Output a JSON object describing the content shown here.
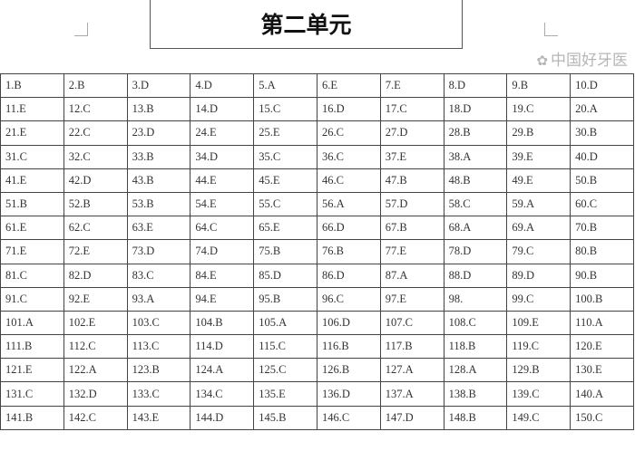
{
  "title": "第二单元",
  "watermark": "中国好牙医",
  "answers": [
    [
      "1.B",
      "2.B",
      "3.D",
      "4.D",
      "5.A",
      "6.E",
      "7.E",
      "8.D",
      "9.B",
      "10.D"
    ],
    [
      "11.E",
      "12.C",
      "13.B",
      "14.D",
      "15.C",
      "16.D",
      "17.C",
      "18.D",
      "19.C",
      "20.A"
    ],
    [
      "21.E",
      "22.C",
      "23.D",
      "24.E",
      "25.E",
      "26.C",
      "27.D",
      "28.B",
      "29.B",
      "30.B"
    ],
    [
      "31.C",
      "32.C",
      "33.B",
      "34.D",
      "35.C",
      "36.C",
      "37.E",
      "38.A",
      "39.E",
      "40.D"
    ],
    [
      "41.E",
      "42.D",
      "43.B",
      "44.E",
      "45.E",
      "46.C",
      "47.B",
      "48.B",
      "49.E",
      "50.B"
    ],
    [
      "51.B",
      "52.B",
      "53.B",
      "54.E",
      "55.C",
      "56.A",
      "57.D",
      "58.C",
      "59.A",
      "60.C"
    ],
    [
      "61.E",
      "62.C",
      "63.E",
      "64.C",
      "65.E",
      "66.D",
      "67.B",
      "68.A",
      "69.A",
      "70.B"
    ],
    [
      "71.E",
      "72.E",
      "73.D",
      "74.D",
      "75.B",
      "76.B",
      "77.E",
      "78.D",
      "79.C",
      "80.B"
    ],
    [
      "81.C",
      "82.D",
      "83.C",
      "84.E",
      "85.D",
      "86.D",
      "87.A",
      "88.D",
      "89.D",
      "90.B"
    ],
    [
      "91.C",
      "92.E",
      "93.A",
      "94.E",
      "95.B",
      "96.C",
      "97.E",
      "98.",
      "99.C",
      "100.B"
    ],
    [
      "101.A",
      "102.E",
      "103.C",
      "104.B",
      "105.A",
      "106.D",
      "107.C",
      "108.C",
      "109.E",
      "110.A"
    ],
    [
      "111.B",
      "112.C",
      "113.C",
      "114.D",
      "115.C",
      "116.B",
      "117.B",
      "118.B",
      "119.C",
      "120.E"
    ],
    [
      "121.E",
      "122.A",
      "123.B",
      "124.A",
      "125.C",
      "126.B",
      "127.A",
      "128.A",
      "129.B",
      "130.E"
    ],
    [
      "131.C",
      "132.D",
      "133.C",
      "134.C",
      "135.E",
      "136.D",
      "137.A",
      "138.B",
      "139.C",
      "140.A"
    ],
    [
      "141.B",
      "142.C",
      "143.E",
      "144.D",
      "145.B",
      "146.C",
      "147.D",
      "148.B",
      "149.C",
      "150.C"
    ]
  ]
}
